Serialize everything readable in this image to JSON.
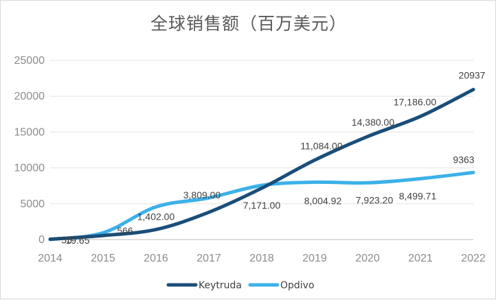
{
  "chart_data": {
    "type": "line",
    "title": "全球销售额（百万美元）",
    "x": [
      "2014",
      "2015",
      "2016",
      "2017",
      "2018",
      "2019",
      "2020",
      "2021",
      "2022"
    ],
    "ylim": [
      0,
      25000
    ],
    "yticks": [
      "0",
      "5000",
      "10000",
      "15000",
      "20000",
      "25000"
    ],
    "grid": true,
    "legend_position": "bottom",
    "series": [
      {
        "name": "Keytruda",
        "color": "#1a4e7a",
        "values": [
          55,
          566,
          1402,
          3809,
          7171,
          11084,
          14380,
          17186,
          20937
        ],
        "labels": [
          "55",
          "566",
          "1,402.00",
          "3,809.00",
          "7,171.00",
          "11,084.00",
          "14,380.00",
          "17,186.00",
          "20937"
        ]
      },
      {
        "name": "Opdivo",
        "color": "#3cb1e8",
        "values": [
          19.65,
          942,
          4560,
          5820,
          7570,
          8004.92,
          7923.2,
          8499.71,
          9363
        ],
        "labels": [
          "19.65",
          "",
          "",
          "",
          "",
          "8,004.92",
          "7,923.20",
          "8,499.71",
          "9363"
        ]
      }
    ]
  }
}
